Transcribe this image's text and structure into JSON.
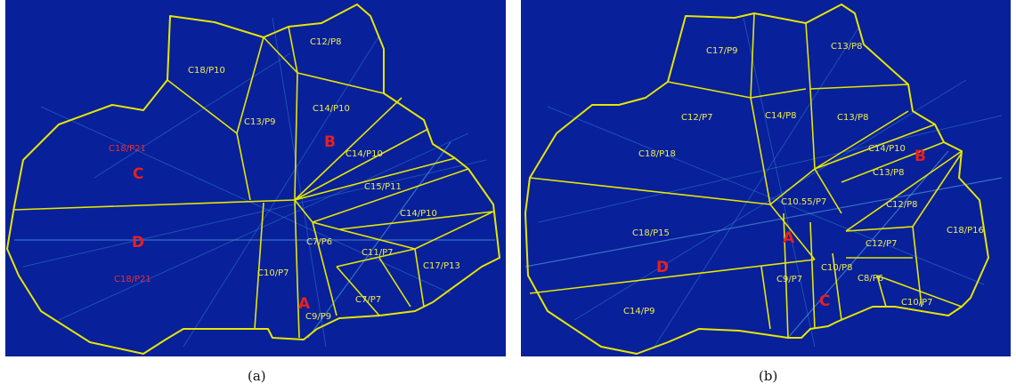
{
  "panels": [
    {
      "id": "a",
      "caption": "(a)",
      "regions": [
        {
          "label": "C12/P8"
        },
        {
          "label": "C18/P10"
        },
        {
          "label": "C13/P9"
        },
        {
          "label": "C14/P10"
        },
        {
          "label": "C14/P10"
        },
        {
          "label": "C15/P11"
        },
        {
          "label": "C14/P10"
        },
        {
          "label": "C7/P6"
        },
        {
          "label": "C11/P7"
        },
        {
          "label": "C17/P13"
        },
        {
          "label": "C10/P7"
        },
        {
          "label": "C7/P7"
        },
        {
          "label": "C9/P9"
        },
        {
          "label": "C18/P21",
          "color": "red"
        },
        {
          "label": "C18/P21",
          "color": "red"
        }
      ],
      "markers": [
        "A",
        "B",
        "C",
        "D"
      ]
    },
    {
      "id": "b",
      "caption": "(b)",
      "regions": [
        {
          "label": "C17/P9"
        },
        {
          "label": "C13/P8"
        },
        {
          "label": "C12/P7"
        },
        {
          "label": "C14/P8"
        },
        {
          "label": "C13/P8"
        },
        {
          "label": "C18/P18"
        },
        {
          "label": "C14/P10"
        },
        {
          "label": "C13/P8"
        },
        {
          "label": "C10.55/P7"
        },
        {
          "label": "C12/P8"
        },
        {
          "label": "C18/P15"
        },
        {
          "label": "C12/P7"
        },
        {
          "label": "C18/P16"
        },
        {
          "label": "C9/P7"
        },
        {
          "label": "C10/P8"
        },
        {
          "label": "C8/P6"
        },
        {
          "label": "C14/P9"
        },
        {
          "label": "C10/P7"
        }
      ],
      "markers": [
        "A",
        "B",
        "C",
        "D"
      ]
    }
  ],
  "colors": {
    "background": "#08209a",
    "edges": "#e6e600",
    "label": "#f0ee4a",
    "marker": "#e62020"
  }
}
